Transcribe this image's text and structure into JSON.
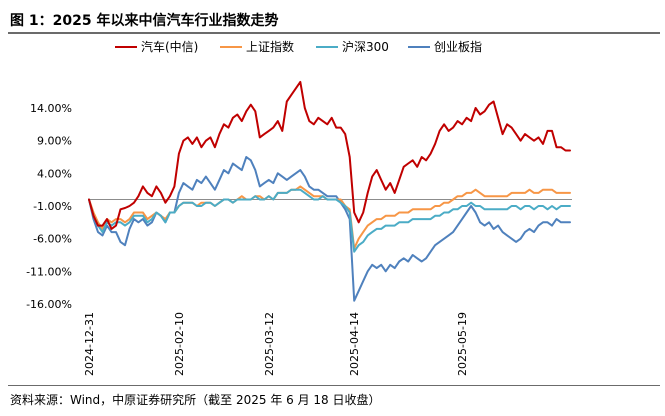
{
  "title": "图 1：2025 年以来中信汽车行业指数走势",
  "source": "资料来源：Wind，中原证券研究所（截至 2025 年 6 月 18 日收盘）",
  "chart_data": {
    "type": "line",
    "title": "",
    "xlabel": "",
    "ylabel": "",
    "ylim": [
      -16,
      14
    ],
    "yticks": [
      "14.00%",
      "9.00%",
      "4.00%",
      "-1.00%",
      "-6.00%",
      "-11.00%",
      "-16.00%"
    ],
    "ytick_values": [
      14,
      9,
      4,
      -1,
      -6,
      -11,
      -16
    ],
    "baseline": 0,
    "xtick_labels": [
      "2024-12-31",
      "2025-02-10",
      "2025-03-12",
      "2025-04-14",
      "2025-05-19"
    ],
    "xtick_index": [
      0,
      20,
      40,
      59,
      83
    ],
    "legend_position": "top",
    "grid": false,
    "series": [
      {
        "name": "汽车(中信)",
        "color": "#C00000",
        "values": [
          0.0,
          -2.5,
          -4.0,
          -4.0,
          -3.0,
          -4.5,
          -4.0,
          -1.5,
          -1.3,
          -1.0,
          -0.5,
          0.5,
          2.0,
          1.0,
          0.5,
          2.0,
          1.0,
          -0.5,
          0.5,
          2.0,
          7.0,
          9.0,
          9.5,
          8.5,
          9.5,
          8.0,
          9.0,
          9.5,
          8.0,
          10.0,
          11.5,
          11.0,
          12.5,
          13.0,
          12.0,
          13.5,
          14.5,
          13.5,
          9.5,
          10.0,
          10.5,
          11.0,
          12.0,
          10.5,
          15.0,
          16.0,
          17.0,
          18.0,
          14.0,
          12.0,
          11.5,
          12.5,
          12.0,
          11.5,
          12.5,
          11.0,
          11.0,
          10.0,
          6.5,
          -2.0,
          -3.5,
          -2.0,
          1.0,
          3.5,
          4.5,
          3.0,
          1.5,
          2.5,
          1.0,
          3.0,
          5.0,
          5.5,
          6.0,
          5.0,
          6.5,
          6.0,
          7.0,
          8.5,
          10.5,
          11.5,
          10.5,
          11.0,
          12.0,
          11.5,
          12.5,
          12.0,
          14.0,
          13.0,
          13.5,
          14.5,
          15.0,
          12.5,
          10.0,
          11.5,
          11.0,
          10.0,
          9.0,
          10.0,
          9.5,
          9.0,
          9.5,
          8.5,
          10.5,
          10.5,
          8.0,
          8.0,
          7.5,
          7.5
        ]
      },
      {
        "name": "上证指数",
        "color": "#F79646",
        "values": [
          0.0,
          -2.0,
          -3.5,
          -4.5,
          -3.0,
          -3.5,
          -3.0,
          -3.0,
          -3.5,
          -3.0,
          -2.0,
          -2.0,
          -2.0,
          -3.0,
          -2.5,
          -2.0,
          -2.5,
          -3.0,
          -2.0,
          -2.0,
          -1.0,
          -0.5,
          -0.5,
          -0.5,
          -1.0,
          -0.5,
          -0.5,
          -0.5,
          -1.0,
          -0.5,
          0.0,
          0.0,
          -0.5,
          0.0,
          0.5,
          0.0,
          0.0,
          0.5,
          0.5,
          0.0,
          0.5,
          0.0,
          1.0,
          1.0,
          1.0,
          1.5,
          1.5,
          2.0,
          1.5,
          1.0,
          0.5,
          0.5,
          0.5,
          0.0,
          0.0,
          0.0,
          0.0,
          -1.0,
          -1.5,
          -7.5,
          -6.0,
          -5.0,
          -4.0,
          -3.5,
          -3.0,
          -3.0,
          -2.5,
          -2.5,
          -2.5,
          -2.0,
          -2.0,
          -2.0,
          -1.5,
          -1.5,
          -1.5,
          -1.5,
          -1.5,
          -1.0,
          -1.0,
          -0.5,
          -0.5,
          0.0,
          0.5,
          0.5,
          1.0,
          1.0,
          1.5,
          1.0,
          0.5,
          0.5,
          0.5,
          0.5,
          0.5,
          0.5,
          1.0,
          1.0,
          1.0,
          1.0,
          1.5,
          1.0,
          1.0,
          1.5,
          1.5,
          1.5,
          1.0,
          1.0,
          1.0,
          1.0
        ]
      },
      {
        "name": "沪深300",
        "color": "#4BACC6",
        "values": [
          0.0,
          -2.5,
          -4.0,
          -5.0,
          -3.5,
          -4.0,
          -3.5,
          -3.5,
          -4.0,
          -3.5,
          -2.5,
          -2.5,
          -2.5,
          -3.5,
          -3.0,
          -2.0,
          -2.5,
          -3.5,
          -2.0,
          -2.0,
          -1.0,
          -0.5,
          -0.5,
          -0.5,
          -1.0,
          -1.0,
          -0.5,
          -0.5,
          -1.0,
          -0.5,
          0.0,
          0.0,
          -0.5,
          0.0,
          0.0,
          0.0,
          0.0,
          0.5,
          0.0,
          0.0,
          0.5,
          0.0,
          1.0,
          1.0,
          1.0,
          1.5,
          1.5,
          1.5,
          1.0,
          0.5,
          0.0,
          0.0,
          0.5,
          0.0,
          0.0,
          0.0,
          -0.5,
          -1.0,
          -2.0,
          -8.0,
          -7.0,
          -6.5,
          -5.5,
          -5.0,
          -4.5,
          -4.5,
          -4.0,
          -4.0,
          -4.0,
          -3.5,
          -3.5,
          -3.5,
          -3.0,
          -3.0,
          -3.0,
          -3.0,
          -3.0,
          -2.5,
          -2.5,
          -2.0,
          -2.0,
          -1.5,
          -1.5,
          -1.0,
          -1.0,
          -0.5,
          -1.0,
          -1.0,
          -1.5,
          -1.5,
          -1.5,
          -1.5,
          -1.5,
          -1.5,
          -1.0,
          -1.0,
          -1.5,
          -1.0,
          -1.0,
          -1.5,
          -1.0,
          -1.0,
          -1.5,
          -1.0,
          -1.5,
          -1.0,
          -1.0,
          -1.0
        ]
      },
      {
        "name": "创业板指",
        "color": "#4F81BD",
        "values": [
          0.0,
          -3.0,
          -5.0,
          -5.5,
          -4.0,
          -5.0,
          -5.0,
          -6.5,
          -7.0,
          -4.5,
          -3.0,
          -3.5,
          -3.0,
          -4.0,
          -3.5,
          -2.0,
          -2.5,
          -3.5,
          -2.0,
          -2.0,
          1.0,
          2.5,
          2.0,
          1.5,
          3.0,
          2.5,
          3.5,
          2.5,
          1.5,
          3.0,
          4.5,
          4.0,
          5.5,
          5.0,
          4.5,
          6.5,
          6.0,
          4.5,
          2.0,
          2.5,
          3.0,
          2.5,
          4.0,
          3.5,
          3.0,
          3.5,
          4.0,
          4.5,
          3.5,
          2.0,
          1.5,
          1.5,
          1.0,
          0.5,
          0.5,
          0.5,
          -0.5,
          -1.5,
          -3.0,
          -15.5,
          -14.0,
          -12.5,
          -11.0,
          -10.0,
          -10.5,
          -10.0,
          -11.0,
          -10.0,
          -10.5,
          -9.5,
          -9.0,
          -9.5,
          -8.5,
          -9.0,
          -9.5,
          -9.0,
          -8.0,
          -7.0,
          -6.5,
          -6.0,
          -5.5,
          -5.0,
          -4.0,
          -3.0,
          -2.0,
          -1.0,
          -2.0,
          -3.5,
          -4.0,
          -3.5,
          -4.5,
          -4.0,
          -5.0,
          -5.5,
          -6.0,
          -6.5,
          -6.0,
          -5.0,
          -4.5,
          -5.0,
          -4.0,
          -3.5,
          -3.5,
          -4.0,
          -3.0,
          -3.5,
          -3.5,
          -3.5
        ]
      }
    ]
  }
}
